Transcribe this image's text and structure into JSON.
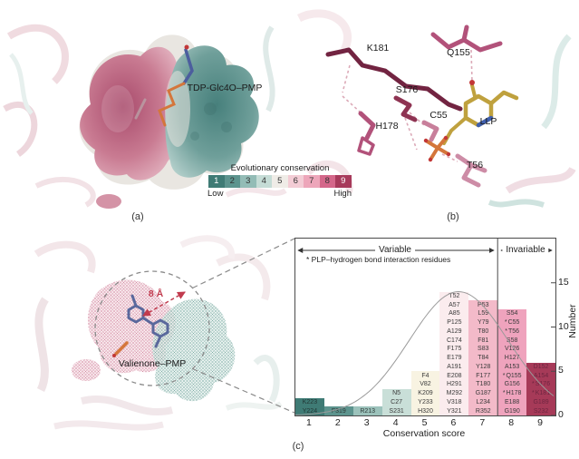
{
  "captions": {
    "a": "(a)",
    "b": "(b)",
    "c": "(c)"
  },
  "panel_a": {
    "ligand_label": "TDP-Glc4O–PMP",
    "legend": {
      "title": "Evolutionary conservation",
      "scores": [
        "1",
        "2",
        "3",
        "4",
        "5",
        "6",
        "7",
        "8",
        "9"
      ],
      "colors": [
        "#3f7b75",
        "#5d948e",
        "#93bcb6",
        "#c5dcd6",
        "#efece7",
        "#f3ccd5",
        "#eda6ba",
        "#d4678a",
        "#a73a5b"
      ],
      "low_label": "Low",
      "high_label": "High"
    }
  },
  "panel_b": {
    "residues": [
      {
        "label": "K181"
      },
      {
        "label": "Q155"
      },
      {
        "label": "S176"
      },
      {
        "label": "C55"
      },
      {
        "label": "H178"
      },
      {
        "label": "LLP"
      },
      {
        "label": "T56"
      }
    ]
  },
  "panel_c": {
    "distance_label": "8 Å",
    "ligand_label": "Valienone–PMP"
  },
  "chart_data": {
    "type": "bar",
    "title": "",
    "xlabel": "Conservation score",
    "ylabel": "Number",
    "categories": [
      "1",
      "2",
      "3",
      "4",
      "5",
      "6",
      "7",
      "8",
      "9"
    ],
    "values": [
      2,
      1,
      1,
      3,
      5,
      14,
      13,
      12,
      6
    ],
    "ylim": [
      0,
      20
    ],
    "yticks": [
      0,
      5,
      10,
      15
    ],
    "grid": false,
    "bar_colors": [
      "#3f7b75",
      "#5d948e",
      "#9cc2bb",
      "#c9dfd8",
      "#f8f3e2",
      "#fbecee",
      "#f3bac9",
      "#efa3bd",
      "#a63a58"
    ],
    "bar_text_colors": [
      "#223634",
      "#2e3a38",
      "#2e3a38",
      "#3a3a3a",
      "#3a3a3a",
      "#3a3a3a",
      "#3a3a3a",
      "#3a3a3a",
      "#6e2540"
    ],
    "divider_after_category": 7,
    "annotations": {
      "variable": "Variable",
      "invariable": "Invariable",
      "star_note": "* PLP–hydrogen bond interaction residues"
    },
    "curve": {
      "mu": 6.15,
      "sigma": 1.71,
      "peak": 14
    },
    "residues": [
      [
        {
          "label": "K223"
        },
        {
          "label": "Y224"
        }
      ],
      [
        {
          "label": "F319"
        }
      ],
      [
        {
          "label": "R213"
        }
      ],
      [
        {
          "label": "N5"
        },
        {
          "label": "C27"
        },
        {
          "label": "S231"
        }
      ],
      [
        {
          "label": "F4"
        },
        {
          "label": "V82"
        },
        {
          "label": "K209"
        },
        {
          "label": "Y233"
        },
        {
          "label": "H320"
        }
      ],
      [
        {
          "label": "T52"
        },
        {
          "label": "A57"
        },
        {
          "label": "A85"
        },
        {
          "label": "P125"
        },
        {
          "label": "A129"
        },
        {
          "label": "C174"
        },
        {
          "label": "F175"
        },
        {
          "label": "E179"
        },
        {
          "label": "A191"
        },
        {
          "label": "E208"
        },
        {
          "label": "H291"
        },
        {
          "label": "M292"
        },
        {
          "label": "V318"
        },
        {
          "label": "Y321"
        }
      ],
      [
        {
          "label": "P53"
        },
        {
          "label": "L59"
        },
        {
          "label": "Y79"
        },
        {
          "label": "T80"
        },
        {
          "label": "F81"
        },
        {
          "label": "S83"
        },
        {
          "label": "T84"
        },
        {
          "label": "Y128"
        },
        {
          "label": "F177"
        },
        {
          "label": "T180"
        },
        {
          "label": "G187"
        },
        {
          "label": "L234"
        },
        {
          "label": "R352"
        }
      ],
      [
        {
          "label": "S54"
        },
        {
          "label": "C55",
          "star": true
        },
        {
          "label": "T56",
          "star": true
        },
        {
          "label": "S58"
        },
        {
          "label": "V126"
        },
        {
          "label": "H127"
        },
        {
          "label": "A153"
        },
        {
          "label": "Q155",
          "star": true
        },
        {
          "label": "G156"
        },
        {
          "label": "H178",
          "star": true
        },
        {
          "label": "E188"
        },
        {
          "label": "G190"
        }
      ],
      [
        {
          "label": "D152"
        },
        {
          "label": "A154"
        },
        {
          "label": "S176",
          "star": true
        },
        {
          "label": "K181",
          "star": true
        },
        {
          "label": "G189"
        },
        {
          "label": "S232"
        }
      ]
    ]
  }
}
